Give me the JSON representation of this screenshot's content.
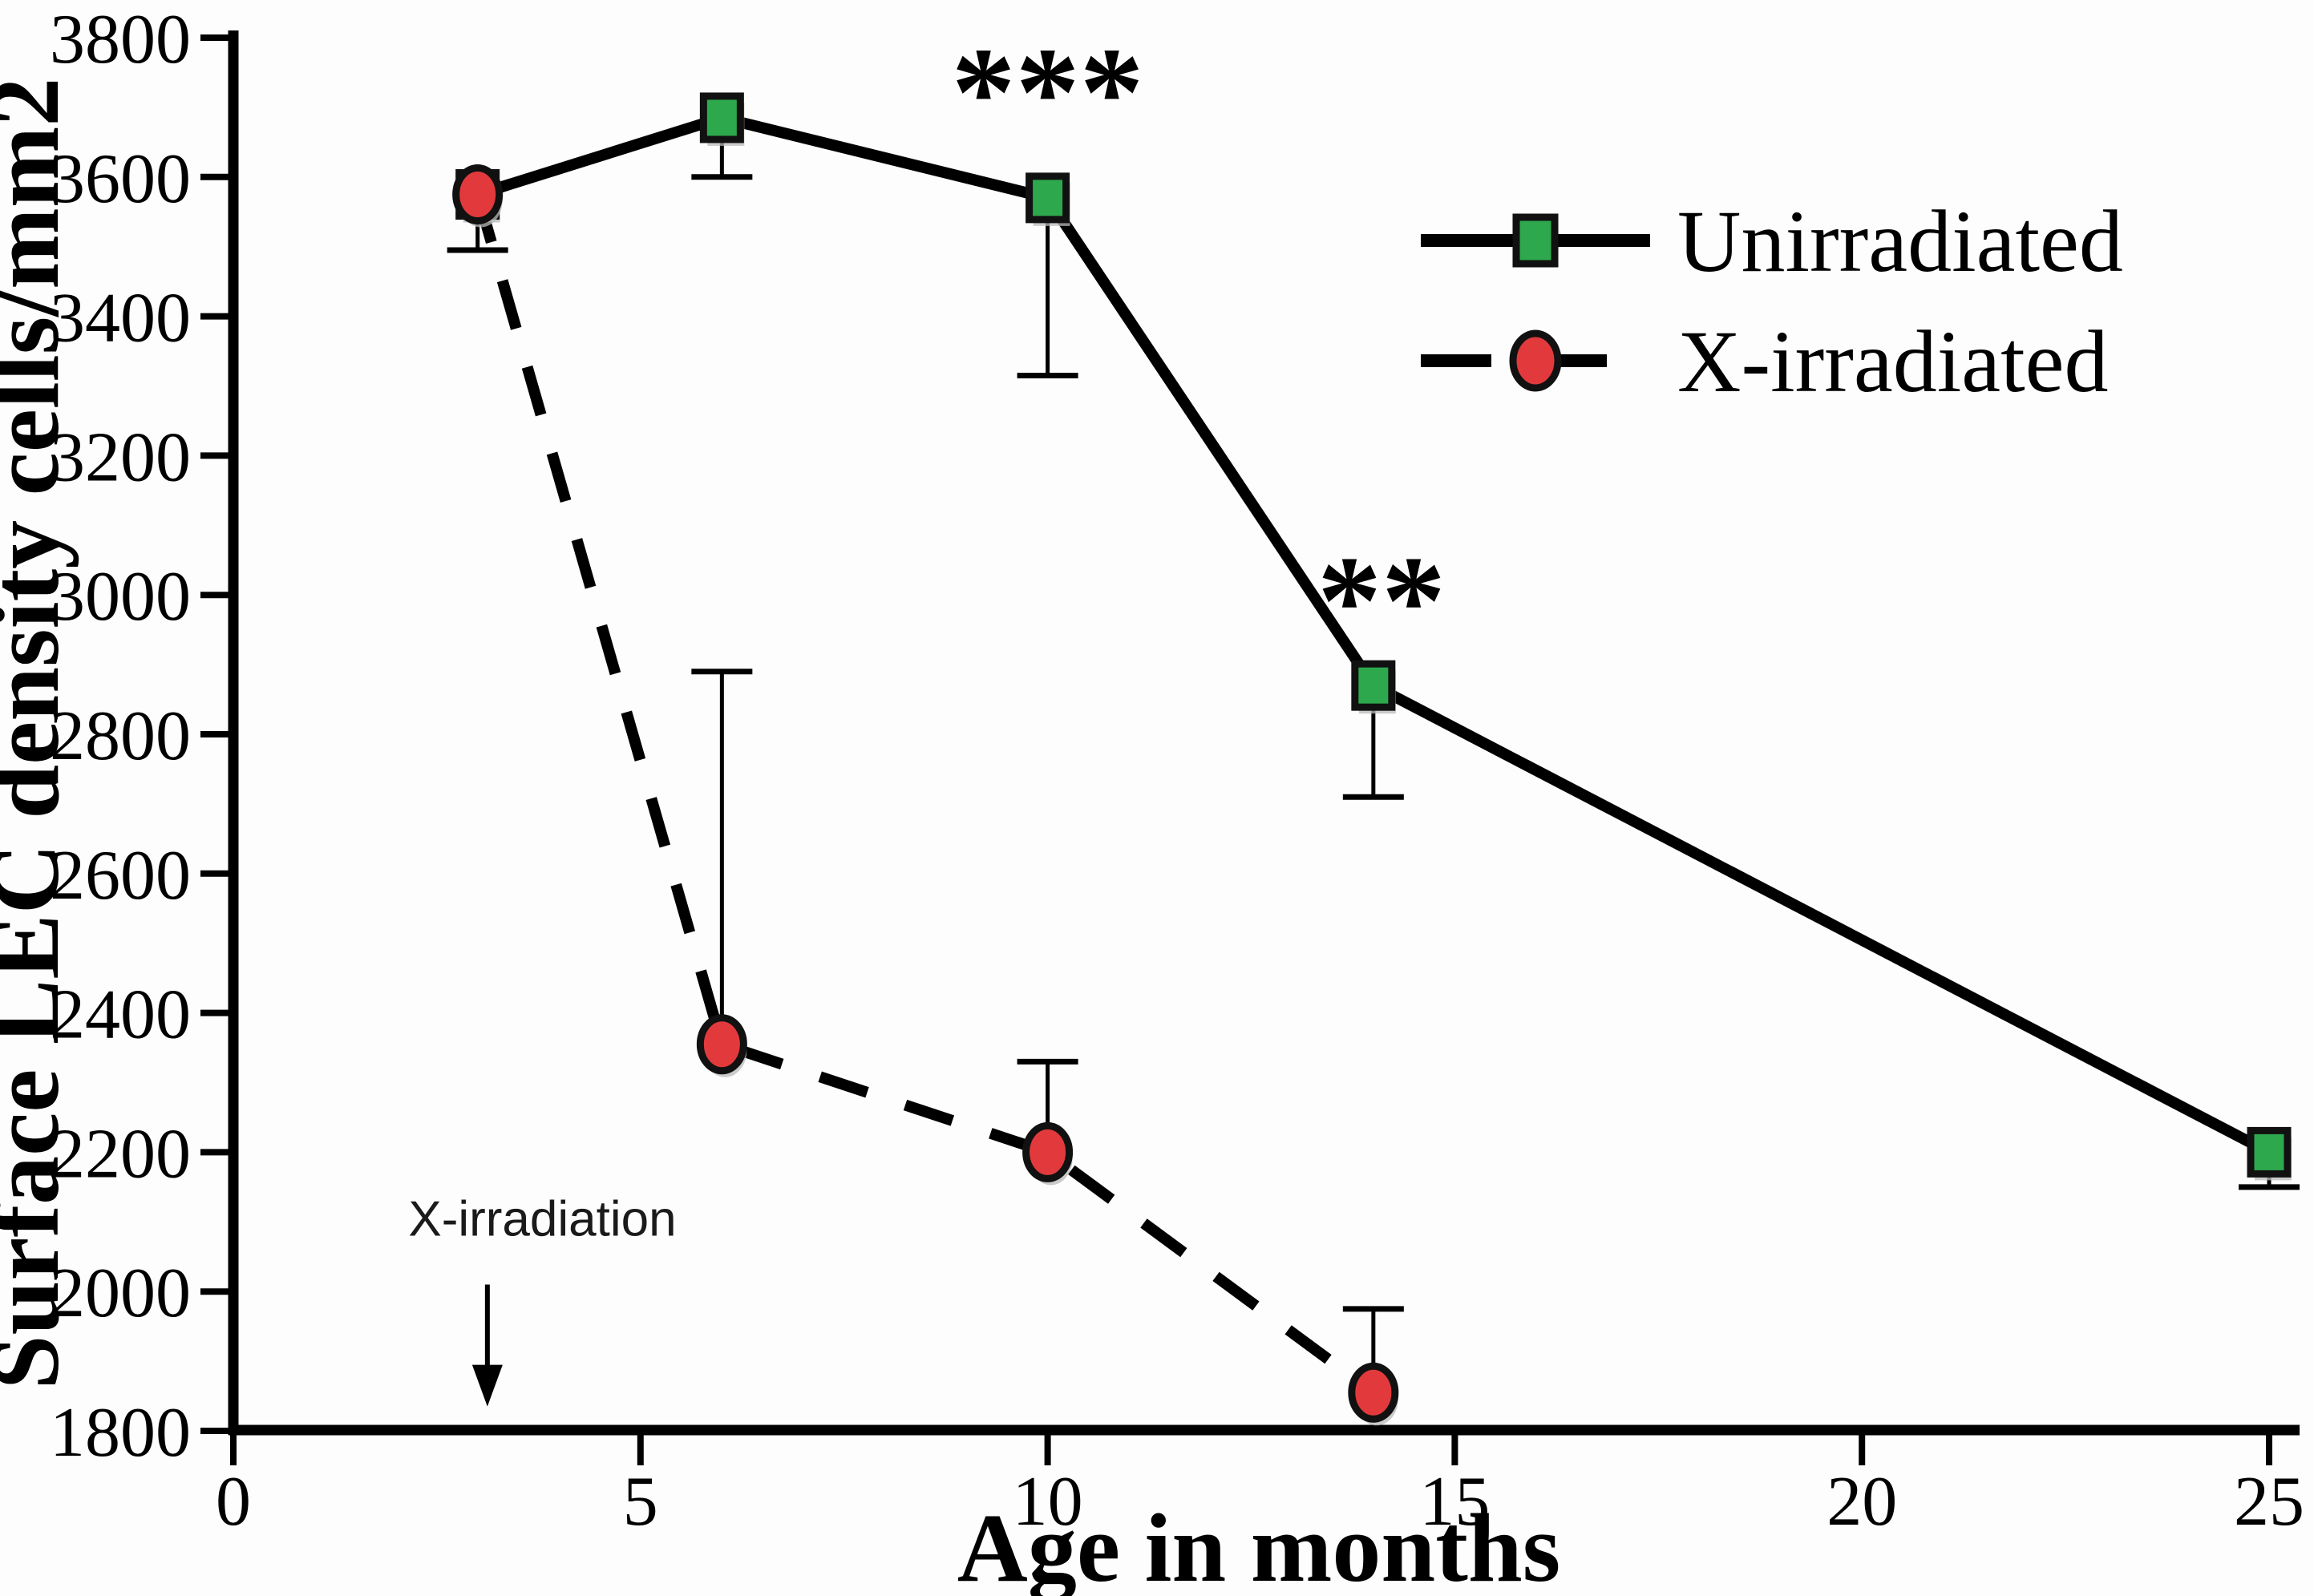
{
  "chart_data": {
    "type": "line",
    "title": "",
    "xlabel": "Age in months",
    "ylabel": "Surface LEC density cells/mm2",
    "xlim": [
      0,
      25.5
    ],
    "ylim": [
      1800,
      3800
    ],
    "x_ticks": [
      0,
      5,
      10,
      15,
      20,
      25
    ],
    "y_ticks": [
      1800,
      2000,
      2200,
      2400,
      2600,
      2800,
      3000,
      3200,
      3400,
      3600,
      3800
    ],
    "grid": false,
    "legend_position": "upper-right",
    "series": [
      {
        "name": "Unirradiated",
        "marker": "square",
        "marker_color": "#2ea84d",
        "line_style": "solid",
        "line_color": "#000000",
        "x": [
          3,
          6,
          10,
          14,
          25
        ],
        "y": [
          3575,
          3685,
          3570,
          2870,
          2200
        ],
        "error_bar_to": [
          3495,
          3600,
          3315,
          2710,
          2150
        ],
        "error_bar_dir": "down"
      },
      {
        "name": "X-irradiated",
        "marker": "circle",
        "marker_color": "#e23a3c",
        "line_style": "dashed",
        "line_color": "#000000",
        "x": [
          3,
          6,
          10,
          14
        ],
        "y": [
          3575,
          2355,
          2200,
          1855
        ],
        "error_bar_to": [
          null,
          2890,
          2330,
          1975
        ],
        "error_bar_dir": "up"
      }
    ],
    "annotations": [
      {
        "text": "***",
        "x": 10.0,
        "y": 3660,
        "anchor": "middle",
        "style": "stars"
      },
      {
        "text": "**",
        "x": 14.1,
        "y": 2930,
        "anchor": "middle",
        "style": "stars"
      },
      {
        "text": "X-irradiation",
        "x": 2.15,
        "y": 2080,
        "anchor": "start",
        "style": "annot-sans"
      }
    ],
    "arrow": {
      "x": 3.12,
      "y_from": 2010,
      "y_to": 1835,
      "meaning": "X-irradiation time point"
    }
  },
  "icons": {
    "legend_square_marker": "green-square-marker",
    "legend_circle_marker": "red-circle-marker",
    "down_arrow": "down-arrow-icon"
  },
  "colors": {
    "series1_fill": "#2ea84d",
    "series2_fill": "#e23a3c",
    "line": "#000000",
    "marker_outline": "#111111",
    "marker_shadow": "#b9b9b9",
    "background": "#fdfdfd"
  }
}
